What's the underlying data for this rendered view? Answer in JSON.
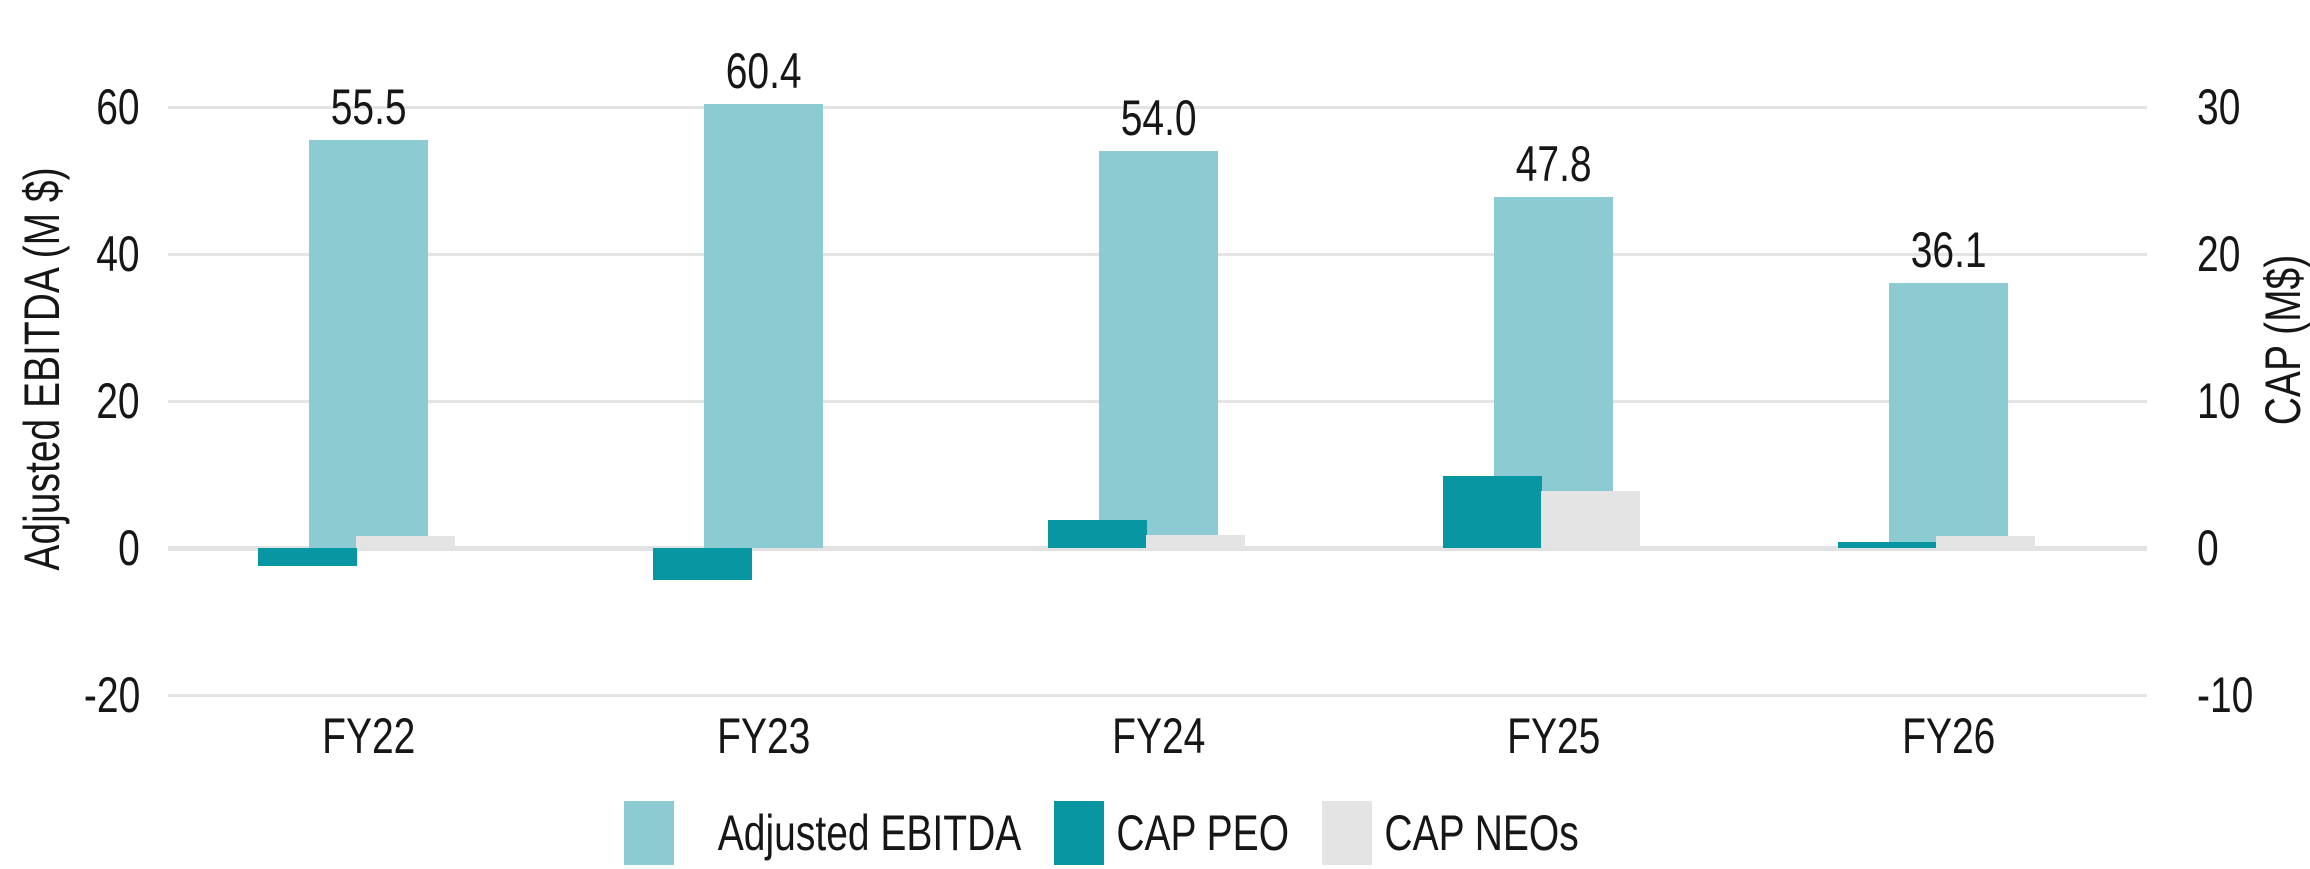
{
  "chart_data": {
    "type": "bar",
    "subtype": "grouped-dual-axis",
    "categories": [
      "FY22",
      "FY23",
      "FY24",
      "FY25",
      "FY26"
    ],
    "series": [
      {
        "name": "Adjusted EBITDA",
        "axis": "left",
        "color": "#8bcbd1",
        "values": [
          55.5,
          60.4,
          54.0,
          47.8,
          36.1
        ],
        "data_labels": [
          "55.5",
          "60.4",
          "54.0",
          "47.8",
          "36.1"
        ]
      },
      {
        "name": "CAP PEO",
        "axis": "right",
        "color": "#0796a2",
        "values": [
          -1.2,
          -2.2,
          1.9,
          4.9,
          0.4
        ]
      },
      {
        "name": "CAP NEOs",
        "axis": "right",
        "color": "#e4e4e4",
        "values": [
          0.8,
          0.0,
          0.9,
          3.9,
          0.8
        ]
      }
    ],
    "left_axis": {
      "title": "Adjusted EBITDA (M $)",
      "ticks": [
        60,
        40,
        20,
        0,
        -20
      ],
      "tick_labels": [
        "60",
        "40",
        "20",
        "0",
        "-20"
      ],
      "range": [
        -24,
        64
      ]
    },
    "right_axis": {
      "title": "CAP (M$)",
      "ticks": [
        30,
        20,
        10,
        0,
        -10
      ],
      "tick_labels": [
        "30",
        "20",
        "10",
        "0",
        "-10"
      ],
      "range": [
        -12,
        32
      ]
    },
    "grid": "horizontal",
    "legend_position": "bottom",
    "legend": [
      "Adjusted EBITDA",
      "CAP PEO",
      "CAP NEOs"
    ]
  },
  "style": {
    "background": "#ffffff",
    "grid_color": "#e4e4e4",
    "zero_line_color": "#e2e2e2",
    "text_color": "#161616"
  }
}
